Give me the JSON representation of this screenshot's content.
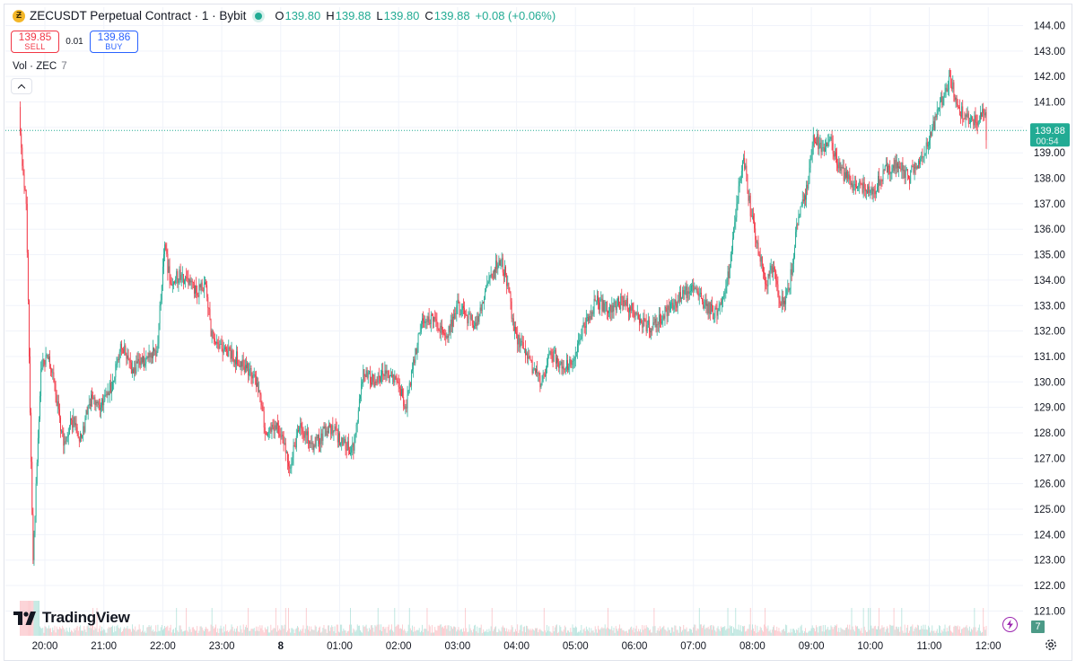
{
  "legend": {
    "coin_icon": "zcash-coin-icon",
    "coin_glyph": "Ƶ",
    "title": "ZECUSDT Perpetual Contract · 1 · Bybit",
    "ohlc": [
      {
        "key": "O",
        "value": "139.80"
      },
      {
        "key": "H",
        "value": "139.88"
      },
      {
        "key": "L",
        "value": "139.80"
      },
      {
        "key": "C",
        "value": "139.88"
      }
    ],
    "change": "+0.08 (+0.06%)"
  },
  "trade": {
    "sell_price": "139.85",
    "sell_label": "SELL",
    "spread": "0.01",
    "buy_price": "139.86",
    "buy_label": "BUY"
  },
  "volume_legend": {
    "label": "Vol · ZEC",
    "value": "7"
  },
  "watermark": {
    "text": "TradingView"
  },
  "price_badge": {
    "price": "139.88",
    "countdown": "00:54"
  },
  "volume_badge": "7",
  "colors": {
    "up": "#22ab94",
    "down": "#f23645",
    "badge": "#22ab94",
    "grid": "#f0f3fa",
    "axis_text": "#131722"
  },
  "chart_data": {
    "type": "candlestick",
    "symbol": "ZECUSDT",
    "interval": "1",
    "exchange": "Bybit",
    "ylim": [
      120.5,
      144.4
    ],
    "y_ticks": [
      "144.00",
      "143.00",
      "142.00",
      "141.00",
      "140.00",
      "139.00",
      "138.00",
      "137.00",
      "136.00",
      "135.00",
      "134.00",
      "133.00",
      "132.00",
      "131.00",
      "130.00",
      "129.00",
      "128.00",
      "127.00",
      "126.00",
      "125.00",
      "124.00",
      "123.00",
      "122.00",
      "121.00"
    ],
    "x_ticks": [
      "20:00",
      "21:00",
      "22:00",
      "23:00",
      "8",
      "01:00",
      "02:00",
      "03:00",
      "04:00",
      "05:00",
      "06:00",
      "07:00",
      "08:00",
      "09:00",
      "10:00",
      "11:00",
      "12:00"
    ],
    "last_price": 139.88,
    "close_path": [
      {
        "t": "19:35",
        "price": 140.8
      },
      {
        "t": "19:37",
        "price": 139.2
      },
      {
        "t": "19:42",
        "price": 137.0
      },
      {
        "t": "19:45",
        "price": 131.0
      },
      {
        "t": "19:49",
        "price": 123.0
      },
      {
        "t": "19:52",
        "price": 126.0
      },
      {
        "t": "19:57",
        "price": 130.5
      },
      {
        "t": "20:05",
        "price": 131.0
      },
      {
        "t": "20:12",
        "price": 129.5
      },
      {
        "t": "20:20",
        "price": 127.5
      },
      {
        "t": "20:28",
        "price": 128.5
      },
      {
        "t": "20:38",
        "price": 127.8
      },
      {
        "t": "20:48",
        "price": 129.5
      },
      {
        "t": "20:58",
        "price": 129.0
      },
      {
        "t": "21:10",
        "price": 130.0
      },
      {
        "t": "21:18",
        "price": 131.5
      },
      {
        "t": "21:30",
        "price": 130.5
      },
      {
        "t": "21:45",
        "price": 131.0
      },
      {
        "t": "21:55",
        "price": 131.2
      },
      {
        "t": "22:00",
        "price": 133.8
      },
      {
        "t": "22:03",
        "price": 135.4
      },
      {
        "t": "22:08",
        "price": 134.0
      },
      {
        "t": "22:20",
        "price": 134.2
      },
      {
        "t": "22:35",
        "price": 133.5
      },
      {
        "t": "22:45",
        "price": 133.8
      },
      {
        "t": "22:50",
        "price": 131.8
      },
      {
        "t": "23:05",
        "price": 131.3
      },
      {
        "t": "23:20",
        "price": 130.8
      },
      {
        "t": "23:35",
        "price": 130.2
      },
      {
        "t": "23:40",
        "price": 129.5
      },
      {
        "t": "23:45",
        "price": 128.0
      },
      {
        "t": "23:55",
        "price": 128.3
      },
      {
        "t": "00:05",
        "price": 127.6
      },
      {
        "t": "00:10",
        "price": 126.6
      },
      {
        "t": "00:20",
        "price": 128.2
      },
      {
        "t": "00:35",
        "price": 127.5
      },
      {
        "t": "00:50",
        "price": 128.3
      },
      {
        "t": "01:05",
        "price": 127.6
      },
      {
        "t": "01:15",
        "price": 127.3
      },
      {
        "t": "01:25",
        "price": 130.5
      },
      {
        "t": "01:35",
        "price": 130.0
      },
      {
        "t": "01:45",
        "price": 130.3
      },
      {
        "t": "02:00",
        "price": 130.0
      },
      {
        "t": "02:08",
        "price": 129.0
      },
      {
        "t": "02:15",
        "price": 130.5
      },
      {
        "t": "02:25",
        "price": 132.5
      },
      {
        "t": "02:40",
        "price": 132.3
      },
      {
        "t": "02:50",
        "price": 131.8
      },
      {
        "t": "03:00",
        "price": 133.0
      },
      {
        "t": "03:10",
        "price": 132.6
      },
      {
        "t": "03:20",
        "price": 132.2
      },
      {
        "t": "03:30",
        "price": 133.8
      },
      {
        "t": "03:38",
        "price": 134.4
      },
      {
        "t": "03:45",
        "price": 134.8
      },
      {
        "t": "03:52",
        "price": 133.9
      },
      {
        "t": "03:58",
        "price": 132.0
      },
      {
        "t": "04:08",
        "price": 131.3
      },
      {
        "t": "04:18",
        "price": 130.5
      },
      {
        "t": "04:26",
        "price": 129.9
      },
      {
        "t": "04:35",
        "price": 131.2
      },
      {
        "t": "04:48",
        "price": 130.6
      },
      {
        "t": "05:00",
        "price": 130.9
      },
      {
        "t": "05:10",
        "price": 132.2
      },
      {
        "t": "05:22",
        "price": 133.2
      },
      {
        "t": "05:35",
        "price": 132.8
      },
      {
        "t": "05:50",
        "price": 133.2
      },
      {
        "t": "06:05",
        "price": 132.5
      },
      {
        "t": "06:18",
        "price": 132.1
      },
      {
        "t": "06:30",
        "price": 132.6
      },
      {
        "t": "06:45",
        "price": 133.2
      },
      {
        "t": "07:00",
        "price": 133.8
      },
      {
        "t": "07:12",
        "price": 133.0
      },
      {
        "t": "07:25",
        "price": 132.6
      },
      {
        "t": "07:38",
        "price": 134.5
      },
      {
        "t": "07:45",
        "price": 137.0
      },
      {
        "t": "07:52",
        "price": 138.8
      },
      {
        "t": "08:00",
        "price": 136.5
      },
      {
        "t": "08:08",
        "price": 135.0
      },
      {
        "t": "08:15",
        "price": 133.8
      },
      {
        "t": "08:22",
        "price": 134.5
      },
      {
        "t": "08:30",
        "price": 133.0
      },
      {
        "t": "08:38",
        "price": 133.6
      },
      {
        "t": "08:48",
        "price": 136.5
      },
      {
        "t": "08:58",
        "price": 137.8
      },
      {
        "t": "09:03",
        "price": 139.7
      },
      {
        "t": "09:12",
        "price": 139.2
      },
      {
        "t": "09:20",
        "price": 139.6
      },
      {
        "t": "09:30",
        "price": 138.3
      },
      {
        "t": "09:42",
        "price": 137.8
      },
      {
        "t": "09:55",
        "price": 137.6
      },
      {
        "t": "10:05",
        "price": 137.5
      },
      {
        "t": "10:15",
        "price": 138.3
      },
      {
        "t": "10:28",
        "price": 138.6
      },
      {
        "t": "10:40",
        "price": 138.0
      },
      {
        "t": "10:50",
        "price": 138.7
      },
      {
        "t": "11:00",
        "price": 139.3
      },
      {
        "t": "11:08",
        "price": 140.4
      },
      {
        "t": "11:15",
        "price": 141.2
      },
      {
        "t": "11:22",
        "price": 142.0
      },
      {
        "t": "11:30",
        "price": 140.8
      },
      {
        "t": "11:38",
        "price": 140.5
      },
      {
        "t": "11:48",
        "price": 140.2
      },
      {
        "t": "11:58",
        "price": 140.6
      },
      {
        "t": "12:05",
        "price": 139.5
      },
      {
        "t": "12:10",
        "price": 138.0
      },
      {
        "t": "12:15",
        "price": 139.2
      },
      {
        "t": "12:20",
        "price": 139.88
      }
    ]
  }
}
